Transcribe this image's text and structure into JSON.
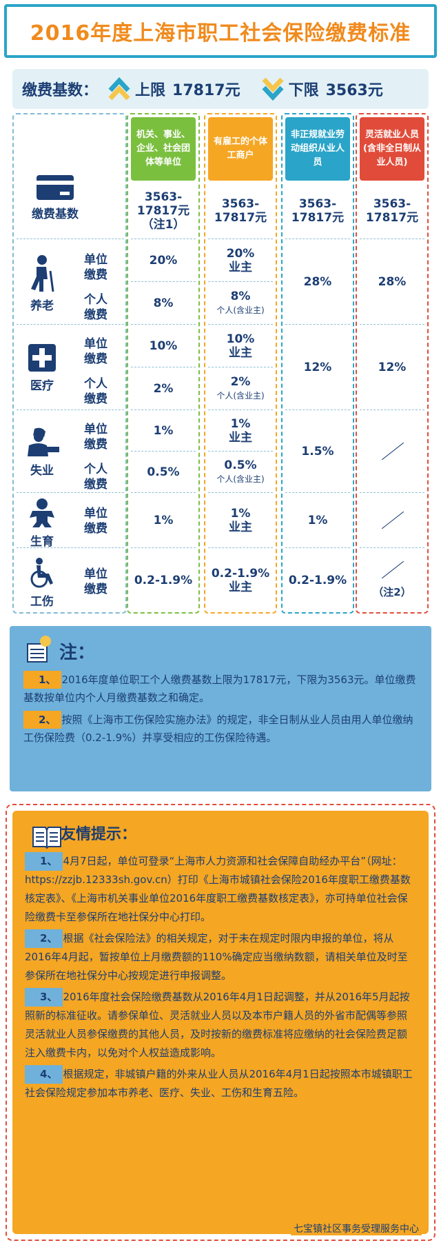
{
  "title": "2016年度上海市职工社会保险缴费标准",
  "base": {
    "label": "缴费基数：",
    "upper_label": "上限",
    "upper_value": "17817元",
    "lower_label": "下限",
    "lower_value": "3563元"
  },
  "rows": {
    "base_label": "缴费基数",
    "pension": "养老",
    "medical": "医疗",
    "unemployment": "失业",
    "maternity": "生育",
    "injury": "工伤",
    "unit_pay": "单位缴费",
    "personal_pay": "个人缴费"
  },
  "columns": [
    {
      "header": "机关、事业、企业、社会团体等单位",
      "color": "#7bbf3f",
      "border": "#7bbf3f",
      "base": "3563-17817元（注1）",
      "pension_unit": "20%",
      "pension_personal": "8%",
      "medical_unit": "10%",
      "medical_personal": "2%",
      "unemp_unit": "1%",
      "unemp_personal": "0.5%",
      "maternity_unit": "1%",
      "injury_unit": "0.2-1.9%"
    },
    {
      "header": "有雇工的个体工商户",
      "color": "#f5a623",
      "border": "#f5a623",
      "base": "3563-17817元",
      "pension_unit": "20%",
      "pension_unit_note": "业主",
      "pension_personal": "8%",
      "pension_personal_note": "个人(含业主)",
      "medical_unit": "10%",
      "medical_unit_note": "业主",
      "medical_personal": "2%",
      "medical_personal_note": "个人(含业主)",
      "unemp_unit": "1%",
      "unemp_unit_note": "业主",
      "unemp_personal": "0.5%",
      "unemp_personal_note": "个人(含业主)",
      "maternity_unit": "1%",
      "maternity_unit_note": "业主",
      "injury_unit": "0.2-1.9%",
      "injury_unit_note": "业主"
    },
    {
      "header": "非正规就业劳动组织从业人员",
      "color": "#2aa4c8",
      "border": "#2aa4c8",
      "base": "3563-17817元",
      "pension": "28%",
      "medical": "12%",
      "unemployment": "1.5%",
      "maternity": "1%",
      "injury": "0.2-1.9%"
    },
    {
      "header": "灵活就业人员(含非全日制从业人员)",
      "color": "#e14c3a",
      "border": "#e14c3a",
      "base": "3563-17817元",
      "pension": "28%",
      "medical": "12%",
      "injury_note": "（注2）"
    }
  ],
  "notes": {
    "title": "注：",
    "items": [
      {
        "num": "1、",
        "text": "2016年度单位职工个人缴费基数上限为17817元，下限为3563元。单位缴费基数按单位内个人月缴费基数之和确定。"
      },
      {
        "num": "2、",
        "text": "按照《上海市工伤保险实施办法》的规定，非全日制从业人员由用人单位缴纳工伤保险费（0.2-1.9%）并享受相应的工伤保险待遇。"
      }
    ]
  },
  "tips": {
    "title": "友情提示：",
    "items": [
      {
        "num": "1、",
        "text": "4月7日起，单位可登录“上海市人力资源和社会保障自助经办平台”（网址：https://zzjb.12333sh.gov.cn）打印《上海市城镇社会保险2016年度职工缴费基数核定表》、《上海市机关事业单位2016年度职工缴费基数核定表》，亦可持单位社会保险缴费卡至参保所在地社保分中心打印。"
      },
      {
        "num": "2、",
        "text": "根据《社会保险法》的相关规定，对于未在规定时限内申报的单位，将从2016年4月起，暂按单位上月缴费额的110%确定应当缴纳数额，请相关单位及时至参保所在地社保分中心按规定进行申报调整。"
      },
      {
        "num": "3、",
        "text": "2016年度社会保险缴费基数从2016年4月1日起调整，并从2016年5月起按照新的标准征收。请参保单位、灵活就业人员以及本市户籍人员的外省市配偶等参照灵活就业人员参保缴费的其他人员，及时按新的缴费标准将应缴纳的社会保险费足额注入缴费卡内，以免对个人权益造成影响。"
      },
      {
        "num": "4、",
        "text": "根据规定，非城镇户籍的外来从业人员从2016年4月1日起按照本市城镇职工社会保险规定参加本市养老、医疗、失业、工伤和生育五险。"
      }
    ],
    "footer": "七宝镇社区事务受理服务中心"
  }
}
